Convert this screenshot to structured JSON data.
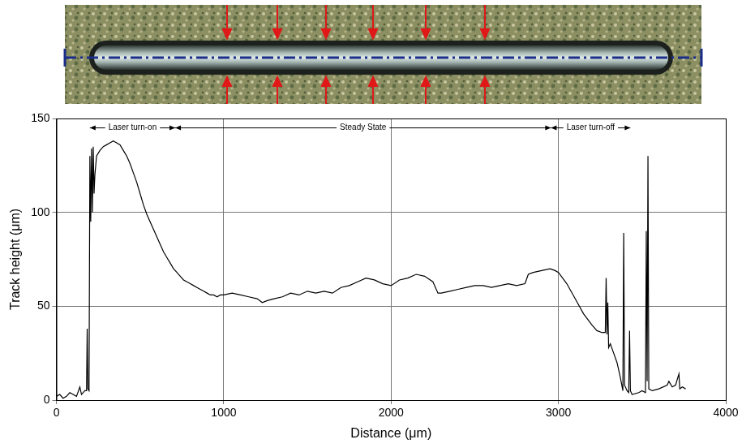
{
  "chart_data": {
    "type": "line",
    "x_label": "Distance (μm)",
    "y_label": "Track height (μm)",
    "color": "#000000",
    "grid": true,
    "xlim": [
      0,
      4000
    ],
    "xticks": [
      0,
      1000,
      2000,
      3000,
      4000
    ],
    "ylim": [
      0,
      150
    ],
    "yticks": [
      0,
      50,
      100,
      150
    ],
    "annotations": [
      {
        "text": "Laser turn-on",
        "x_start": 200,
        "x_end": 710,
        "y": 145
      },
      {
        "text": "Steady State",
        "x_start": 710,
        "x_end": 2955,
        "y": 145
      },
      {
        "text": "Laser turn-off",
        "x_start": 2955,
        "x_end": 3430,
        "y": 145
      }
    ],
    "x": [
      0,
      20,
      40,
      60,
      80,
      100,
      120,
      140,
      150,
      170,
      180,
      184,
      188,
      195,
      200,
      205,
      210,
      215,
      220,
      225,
      230,
      240,
      260,
      280,
      300,
      320,
      340,
      360,
      380,
      400,
      420,
      440,
      460,
      480,
      500,
      520,
      540,
      560,
      580,
      600,
      620,
      640,
      660,
      680,
      700,
      720,
      740,
      760,
      780,
      800,
      820,
      840,
      860,
      880,
      900,
      920,
      940,
      960,
      980,
      1000,
      1050,
      1100,
      1150,
      1200,
      1230,
      1260,
      1300,
      1350,
      1400,
      1450,
      1500,
      1550,
      1600,
      1650,
      1700,
      1750,
      1800,
      1850,
      1900,
      1950,
      2000,
      2050,
      2100,
      2150,
      2200,
      2250,
      2280,
      2300,
      2350,
      2400,
      2450,
      2500,
      2550,
      2600,
      2650,
      2700,
      2750,
      2800,
      2820,
      2850,
      2900,
      2950,
      2980,
      3000,
      3050,
      3100,
      3150,
      3200,
      3230,
      3260,
      3280,
      3285,
      3290,
      3295,
      3300,
      3310,
      3330,
      3350,
      3370,
      3385,
      3390,
      3395,
      3410,
      3420,
      3425,
      3430,
      3440,
      3480,
      3500,
      3520,
      3525,
      3530,
      3535,
      3540,
      3560,
      3600,
      3650,
      3660,
      3680,
      3700,
      3720,
      3725,
      3740,
      3760
    ],
    "values": [
      2,
      3,
      1,
      2,
      4,
      3,
      2,
      7,
      3,
      5,
      5,
      38,
      6,
      5,
      130,
      95,
      134,
      100,
      135,
      110,
      120,
      130,
      133,
      135,
      136,
      137,
      138,
      137,
      136,
      133,
      130,
      126,
      121,
      116,
      110,
      104,
      99,
      95,
      91,
      87,
      83,
      79,
      76,
      73,
      70,
      68,
      66,
      64,
      63,
      62,
      61,
      60,
      59,
      58,
      57,
      56,
      56,
      55,
      56,
      56,
      57,
      56,
      55,
      54,
      52,
      53,
      54,
      55,
      57,
      56,
      58,
      57,
      58,
      57,
      60,
      61,
      63,
      65,
      64,
      62,
      61,
      64,
      65,
      67,
      66,
      63,
      57,
      57,
      58,
      59,
      60,
      61,
      61,
      60,
      61,
      62,
      61,
      62,
      67,
      68,
      69,
      70,
      69,
      68,
      62,
      54,
      46,
      40,
      37,
      36,
      36,
      65,
      35,
      52,
      28,
      30,
      25,
      20,
      12,
      5,
      89,
      8,
      5,
      4,
      37,
      5,
      3,
      4,
      5,
      4,
      90,
      10,
      130,
      6,
      5,
      6,
      8,
      10,
      7,
      8,
      14,
      6,
      7,
      6
    ]
  }
}
